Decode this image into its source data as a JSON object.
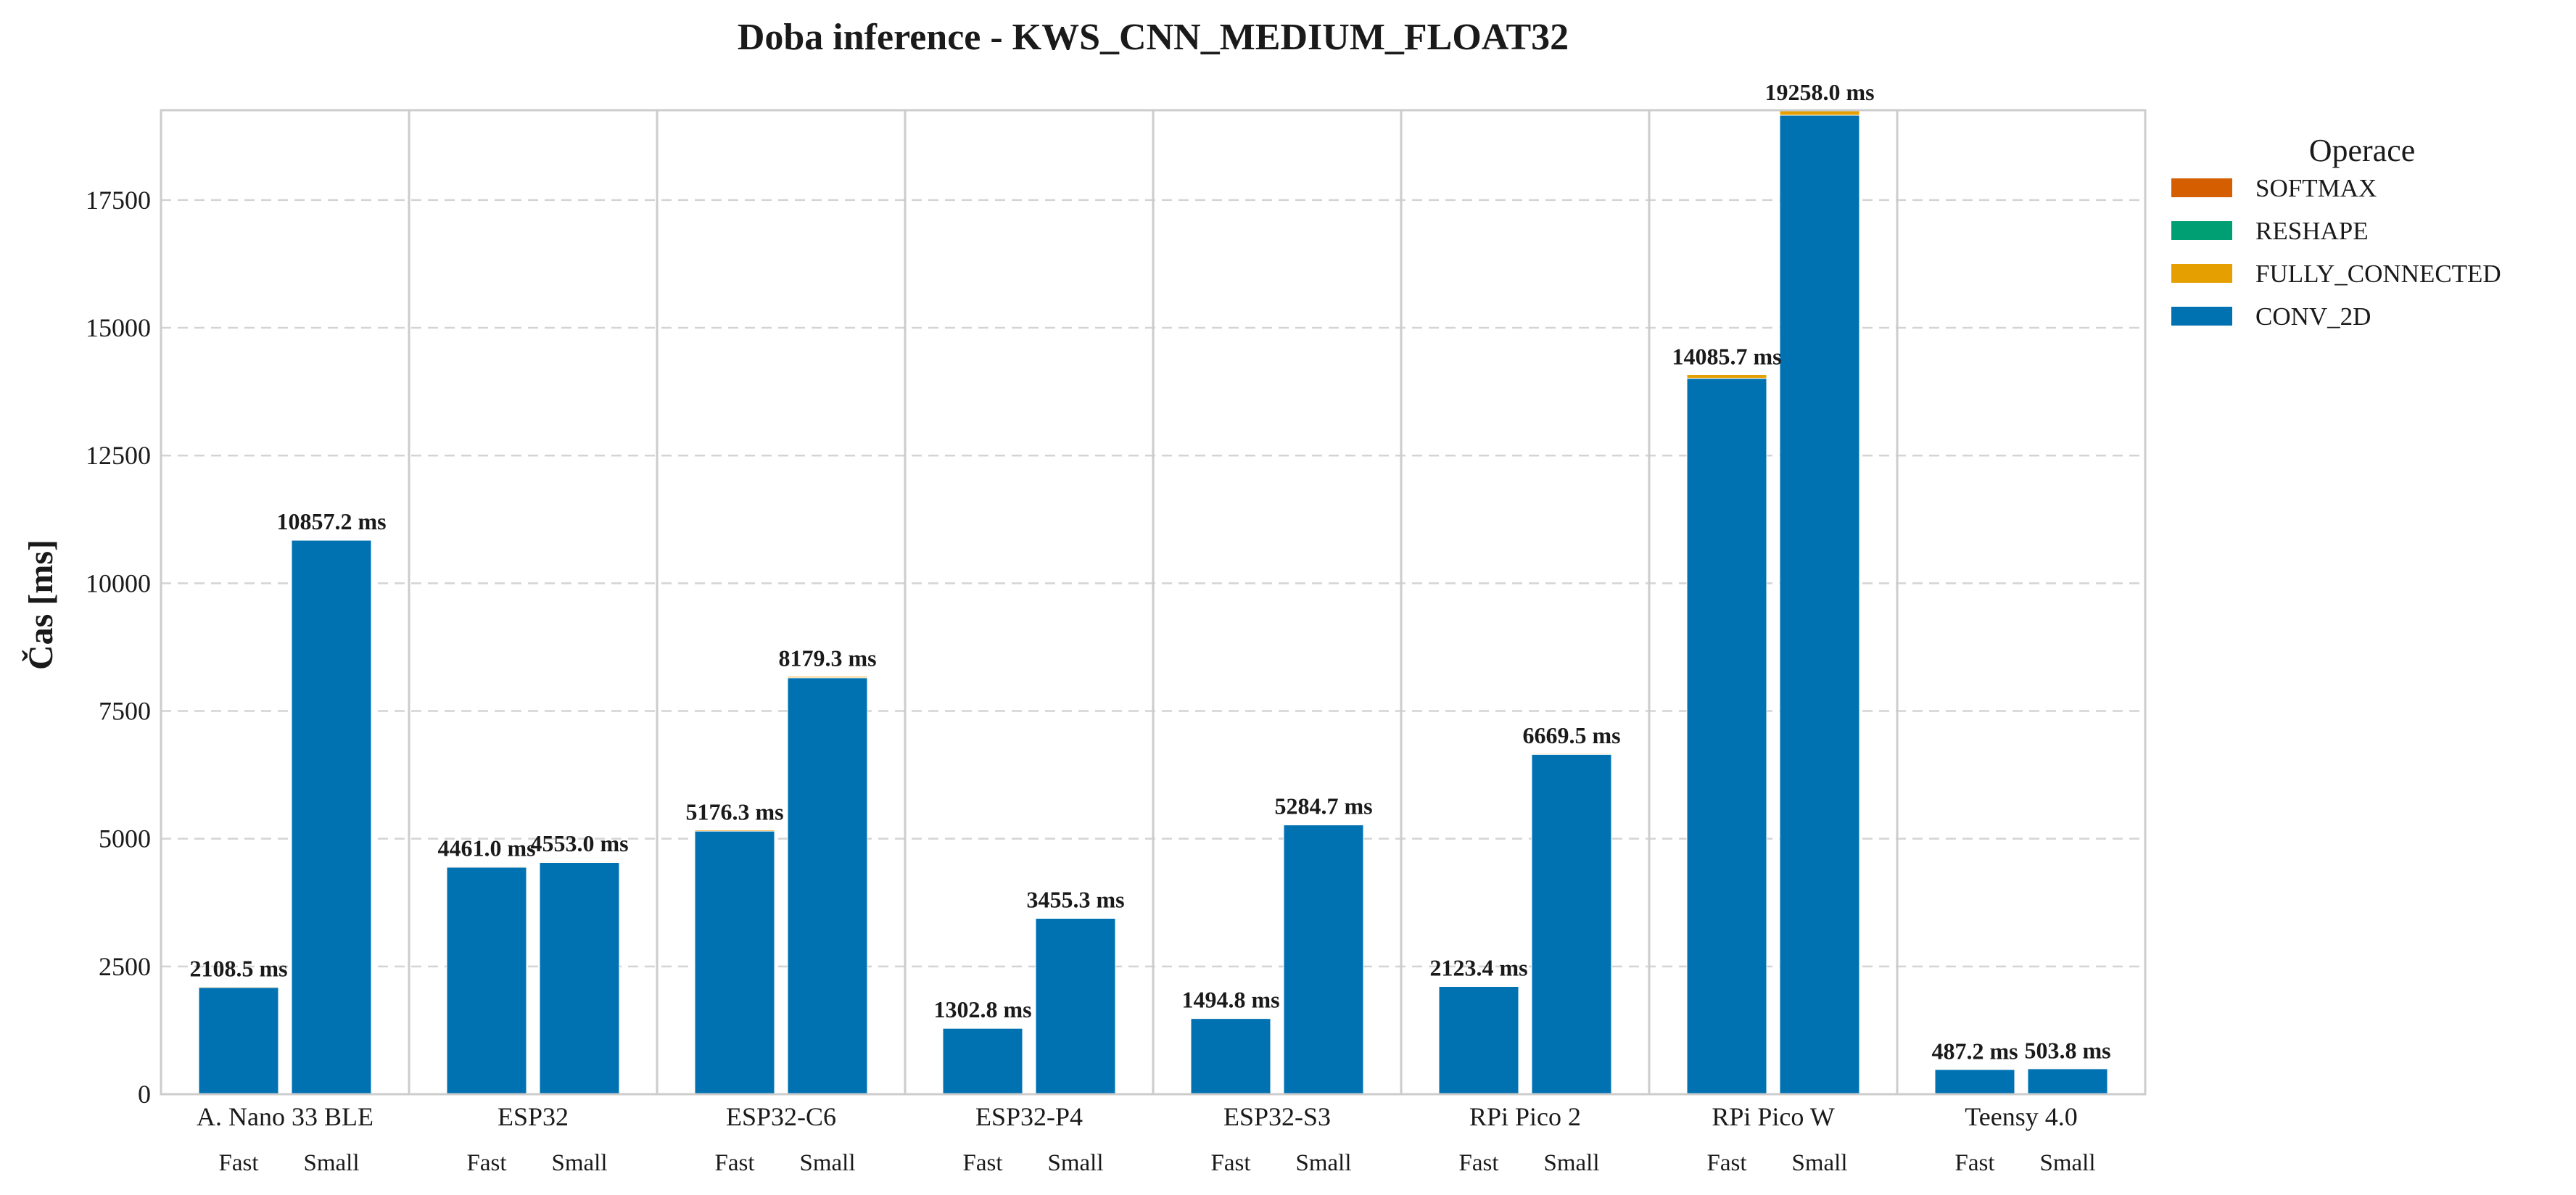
{
  "chart_data": {
    "type": "bar",
    "stacked": true,
    "title": "Doba inference - KWS_CNN_MEDIUM_FLOAT32",
    "xlabel": "",
    "ylabel": "Čas [ms]",
    "ylim": [
      0,
      19258
    ],
    "yticks": [
      0,
      2500,
      5000,
      7500,
      10000,
      12500,
      15000,
      17500
    ],
    "grid": "y-dashed",
    "categories": [
      "A. Nano 33 BLE",
      "ESP32",
      "ESP32-C6",
      "ESP32-P4",
      "ESP32-S3",
      "RPi Pico 2",
      "RPi Pico W",
      "Teensy 4.0"
    ],
    "sub_categories": [
      "Fast",
      "Small"
    ],
    "series": [
      {
        "name": "CONV_2D",
        "color": "#0072B2",
        "values": [
          [
            2090.0,
            10842.0
          ],
          [
            4442.0,
            4535.0
          ],
          [
            5150.0,
            8150.0
          ],
          [
            1290.0,
            3443.0
          ],
          [
            1482.0,
            5271.0
          ],
          [
            2109.0,
            6652.0
          ],
          [
            14010.0,
            19160.0
          ],
          [
            483.0,
            499.5
          ]
        ]
      },
      {
        "name": "FULLY_CONNECTED",
        "color": "#E69F00",
        "values": [
          [
            18.0,
            14.5
          ],
          [
            18.5,
            17.5
          ],
          [
            25.7,
            28.7
          ],
          [
            12.3,
            11.8
          ],
          [
            12.3,
            13.2
          ],
          [
            14.0,
            17.0
          ],
          [
            75.2,
            97.5
          ],
          [
            4.0,
            4.1
          ]
        ]
      },
      {
        "name": "RESHAPE",
        "color": "#009E73",
        "values": [
          [
            0.3,
            0.4
          ],
          [
            0.3,
            0.3
          ],
          [
            0.3,
            0.3
          ],
          [
            0.2,
            0.2
          ],
          [
            0.2,
            0.2
          ],
          [
            0.2,
            0.3
          ],
          [
            0.3,
            0.3
          ],
          [
            0.1,
            0.1
          ]
        ]
      },
      {
        "name": "SOFTMAX",
        "color": "#D55E00",
        "values": [
          [
            0.2,
            0.3
          ],
          [
            0.2,
            0.2
          ],
          [
            0.3,
            0.3
          ],
          [
            0.3,
            0.3
          ],
          [
            0.3,
            0.3
          ],
          [
            0.2,
            0.2
          ],
          [
            0.2,
            0.2
          ],
          [
            0.1,
            0.1
          ]
        ]
      }
    ],
    "totals": [
      [
        2108.5,
        10857.2
      ],
      [
        4461.0,
        4553.0
      ],
      [
        5176.3,
        8179.3
      ],
      [
        1302.8,
        3455.3
      ],
      [
        1494.8,
        5284.7
      ],
      [
        2123.4,
        6669.5
      ],
      [
        14085.7,
        19258.0
      ],
      [
        487.2,
        503.8
      ]
    ],
    "total_labels": [
      [
        "2108.5 ms",
        "10857.2 ms"
      ],
      [
        "4461.0 ms",
        "4553.0 ms"
      ],
      [
        "5176.3 ms",
        "8179.3 ms"
      ],
      [
        "1302.8 ms",
        "3455.3 ms"
      ],
      [
        "1494.8 ms",
        "5284.7 ms"
      ],
      [
        "2123.4 ms",
        "6669.5 ms"
      ],
      [
        "14085.7 ms",
        "19258.0 ms"
      ],
      [
        "487.2 ms",
        "503.8 ms"
      ]
    ],
    "legend": {
      "title": "Operace",
      "placement": "outside-right",
      "entries": [
        "SOFTMAX",
        "RESHAPE",
        "FULLY_CONNECTED",
        "CONV_2D"
      ]
    }
  }
}
